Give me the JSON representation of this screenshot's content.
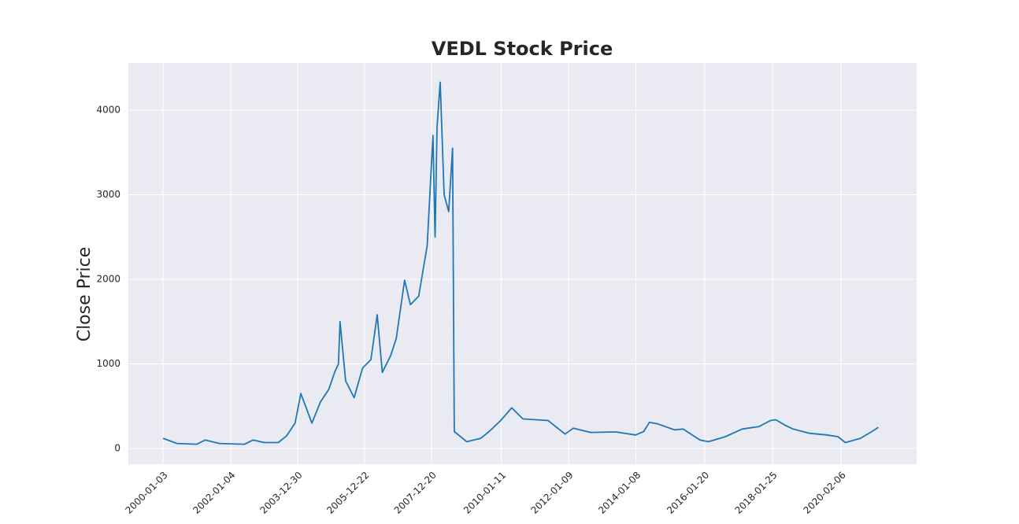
{
  "chart_data": {
    "type": "line",
    "title": "VEDL Stock Price",
    "y_label": "Close Price",
    "x": [
      "2000-01-03",
      "2000-06-01",
      "2001-01-02",
      "2001-04-02",
      "2001-09-03",
      "2002-01-04",
      "2002-06-03",
      "2002-09-02",
      "2003-01-02",
      "2003-06-02",
      "2003-09-01",
      "2003-12-01",
      "2004-02-02",
      "2004-06-01",
      "2004-09-01",
      "2004-12-01",
      "2005-02-01",
      "2005-03-15",
      "2005-04-01",
      "2005-06-01",
      "2005-09-01",
      "2005-12-01",
      "2006-03-01",
      "2006-05-08",
      "2006-07-03",
      "2006-10-02",
      "2006-12-01",
      "2007-03-01",
      "2007-05-02",
      "2007-08-01",
      "2007-11-01",
      "2008-01-02",
      "2008-01-25",
      "2008-02-15",
      "2008-03-20",
      "2008-05-02",
      "2008-06-20",
      "2008-08-01",
      "2008-08-20",
      "2009-01-02",
      "2009-06-01",
      "2009-09-01",
      "2010-01-04",
      "2010-05-03",
      "2010-09-01",
      "2011-06-01",
      "2011-12-01",
      "2012-03-01",
      "2012-09-03",
      "2013-06-03",
      "2014-01-02",
      "2014-04-01",
      "2014-06-02",
      "2014-09-01",
      "2015-03-02",
      "2015-06-01",
      "2015-12-01",
      "2016-03-01",
      "2016-09-01",
      "2017-03-01",
      "2017-09-01",
      "2018-01-02",
      "2018-03-01",
      "2018-06-01",
      "2018-09-03",
      "2019-03-01",
      "2019-09-02",
      "2020-01-02",
      "2020-03-23",
      "2020-09-01",
      "2021-01-04",
      "2021-03-15"
    ],
    "series": [
      {
        "name": "Close",
        "color": "#1f77b4",
        "values": [
          120,
          60,
          50,
          100,
          60,
          55,
          50,
          100,
          70,
          70,
          150,
          300,
          650,
          300,
          550,
          700,
          900,
          1000,
          1500,
          800,
          600,
          950,
          1050,
          1580,
          900,
          1100,
          1300,
          1990,
          1700,
          1800,
          2400,
          3700,
          2500,
          3800,
          4330,
          3000,
          2800,
          3550,
          200,
          80,
          120,
          200,
          330,
          480,
          350,
          330,
          170,
          240,
          190,
          195,
          160,
          200,
          310,
          290,
          220,
          230,
          100,
          80,
          140,
          230,
          260,
          330,
          340,
          280,
          230,
          180,
          160,
          140,
          70,
          120,
          200,
          250
        ]
      }
    ],
    "xlim": [
      "1998-12-23",
      "2022-05-03"
    ],
    "xticks": [
      "2000-01-03",
      "2002-01-04",
      "2003-12-30",
      "2005-12-22",
      "2007-12-20",
      "2010-01-11",
      "2012-01-09",
      "2014-01-08",
      "2016-01-20",
      "2018-01-25",
      "2020-02-06"
    ],
    "ylim": [
      -186,
      4558
    ],
    "yticks": [
      0,
      1000,
      2000,
      3000,
      4000
    ],
    "grid": true
  }
}
